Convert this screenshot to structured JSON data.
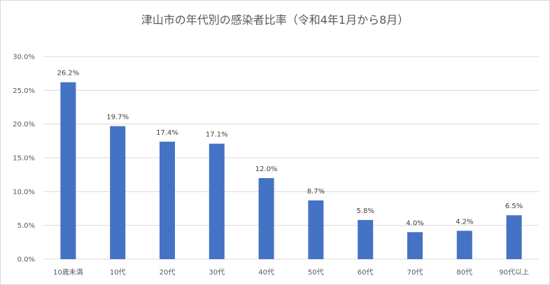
{
  "chart_data": {
    "type": "bar",
    "title": "津山市の年代別の感染者比率（令和4年1月から8月）",
    "categories": [
      "10歳未満",
      "10代",
      "20代",
      "30代",
      "40代",
      "50代",
      "60代",
      "70代",
      "80代",
      "90代以上"
    ],
    "values": [
      26.2,
      19.7,
      17.4,
      17.1,
      12.0,
      8.7,
      5.8,
      4.0,
      4.2,
      6.5
    ],
    "data_labels": [
      "26.2%",
      "19.7%",
      "17.4%",
      "17.1%",
      "12.0%",
      "8.7%",
      "5.8%",
      "4.0%",
      "4.2%",
      "6.5%"
    ],
    "y_ticks": [
      0,
      5,
      10,
      15,
      20,
      25,
      30
    ],
    "y_tick_labels": [
      "0.0%",
      "5.0%",
      "10.0%",
      "15.0%",
      "20.0%",
      "25.0%",
      "30.0%"
    ],
    "ylim": [
      0,
      30
    ],
    "grid": true,
    "legend": "none",
    "bar_color": "#4472c4",
    "grid_color": "#d9d9d9"
  }
}
